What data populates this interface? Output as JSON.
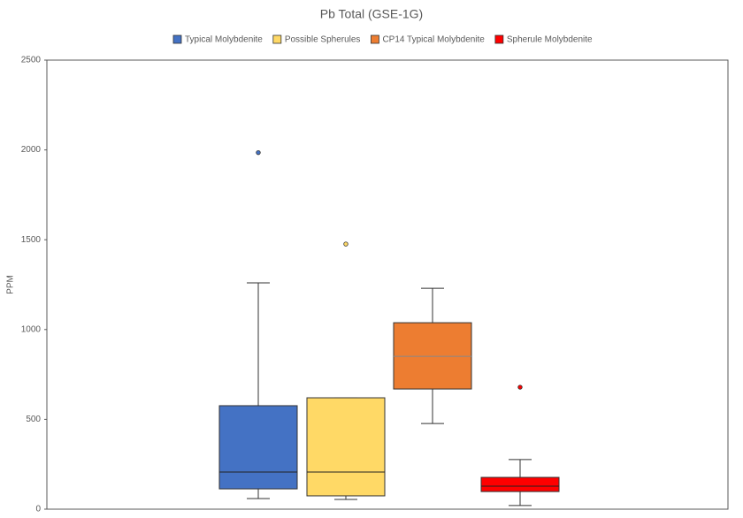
{
  "chart_data": {
    "type": "box",
    "title": "Pb Total (GSE-1G)",
    "y_label": "PPM",
    "ylim": [
      0,
      2500
    ],
    "yticks": [
      0,
      500,
      1000,
      1500,
      2000,
      2500
    ],
    "series": [
      {
        "name": "Typical Molybdenite",
        "color": "#4472c4",
        "min": 59,
        "q1": 113,
        "median": 207,
        "q3": 576,
        "max": 1260,
        "outliers": [
          1985
        ]
      },
      {
        "name": "Possible Spherules",
        "color": "#ffd966",
        "min": 54,
        "q1": 74,
        "median": 207,
        "q3": 620,
        "max": 620,
        "outliers": [
          1476
        ]
      },
      {
        "name": "CP14 Typical Molybdenite",
        "color": "#ed7d31",
        "min": 477,
        "q1": 669,
        "median": 851,
        "q3": 1038,
        "max": 1230,
        "outliers": []
      },
      {
        "name": "Spherule Molybdenite",
        "color": "#ff0000",
        "min": 20,
        "q1": 98,
        "median": 128,
        "q3": 177,
        "max": 276,
        "outliers": [
          679
        ]
      }
    ]
  }
}
